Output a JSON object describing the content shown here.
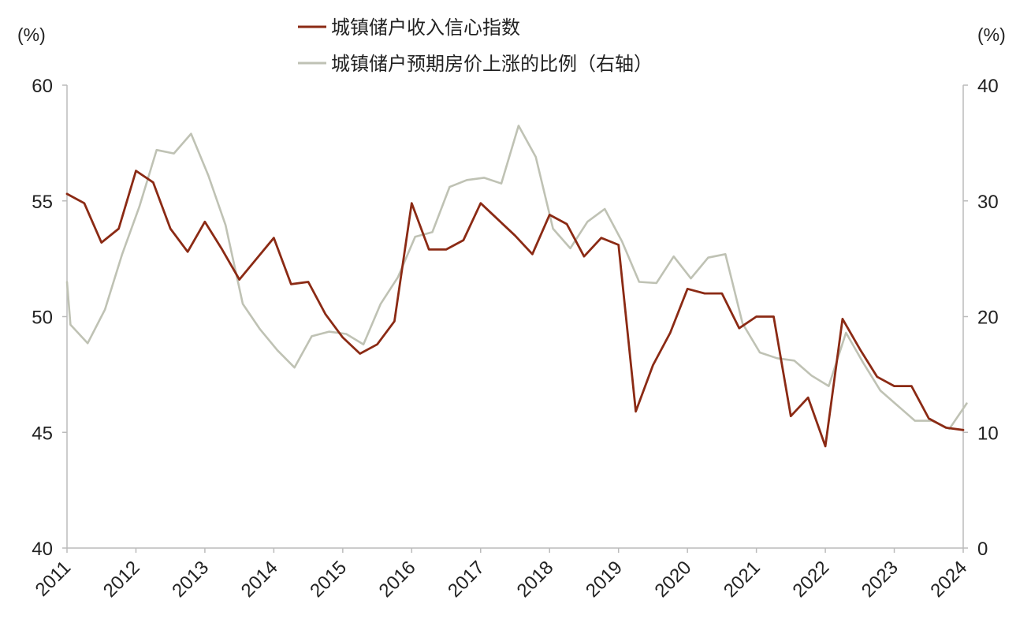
{
  "chart_data": {
    "type": "line",
    "left_unit": "(%)",
    "right_unit": "(%)",
    "x_ticks": [
      "2011",
      "2012",
      "2013",
      "2014",
      "2015",
      "2016",
      "2017",
      "2018",
      "2019",
      "2020",
      "2021",
      "2022",
      "2023",
      "2024"
    ],
    "y_left": {
      "range": [
        40,
        60
      ],
      "ticks": [
        40,
        45,
        50,
        55,
        60
      ]
    },
    "y_right": {
      "range": [
        0,
        40
      ],
      "ticks": [
        0,
        10,
        20,
        30,
        40
      ]
    },
    "grid": false,
    "legend_position": "top-center",
    "series": [
      {
        "name": "城镇储户收入信心指数",
        "axis": "left",
        "color": "#8B2A14",
        "x": [
          2011.0,
          2011.25,
          2011.5,
          2011.75,
          2012.0,
          2012.25,
          2012.5,
          2012.75,
          2013.0,
          2013.25,
          2013.5,
          2013.75,
          2014.0,
          2014.25,
          2014.5,
          2014.75,
          2015.0,
          2015.25,
          2015.5,
          2015.75,
          2016.0,
          2016.25,
          2016.5,
          2016.75,
          2017.0,
          2017.25,
          2017.5,
          2017.75,
          2018.0,
          2018.25,
          2018.5,
          2018.75,
          2019.0,
          2019.25,
          2019.5,
          2019.75,
          2020.0,
          2020.25,
          2020.5,
          2020.75,
          2021.0,
          2021.25,
          2021.5,
          2021.75,
          2022.0,
          2022.25,
          2022.5,
          2022.75,
          2023.0,
          2023.25,
          2023.5,
          2023.75,
          2024.0
        ],
        "values": [
          55.3,
          54.9,
          53.2,
          53.8,
          56.3,
          55.8,
          53.8,
          52.8,
          54.1,
          52.9,
          51.6,
          52.5,
          53.4,
          51.4,
          51.5,
          50.1,
          49.1,
          48.4,
          48.8,
          49.8,
          54.9,
          52.9,
          52.9,
          53.3,
          54.9,
          54.2,
          53.5,
          52.7,
          54.4,
          54.0,
          52.6,
          53.4,
          53.1,
          45.9,
          47.9,
          49.3,
          51.2,
          51.0,
          51.0,
          49.5,
          50.0,
          50.0,
          45.7,
          46.5,
          44.4,
          49.9,
          48.6,
          47.4,
          47.0,
          47.0,
          45.6,
          45.2,
          45.1
        ]
      },
      {
        "name": "城镇储户预期房价上涨的比例（右轴）",
        "axis": "right",
        "color": "#BFC2B4",
        "x": [
          2011.0,
          2011.05,
          2011.3,
          2011.55,
          2011.8,
          2012.05,
          2012.3,
          2012.55,
          2012.8,
          2013.05,
          2013.3,
          2013.55,
          2013.8,
          2014.05,
          2014.3,
          2014.55,
          2014.8,
          2015.05,
          2015.3,
          2015.55,
          2015.8,
          2016.05,
          2016.3,
          2016.55,
          2016.8,
          2017.05,
          2017.3,
          2017.55,
          2017.8,
          2018.05,
          2018.3,
          2018.55,
          2018.8,
          2019.05,
          2019.3,
          2019.55,
          2019.8,
          2020.05,
          2020.3,
          2020.55,
          2020.8,
          2021.05,
          2021.3,
          2021.55,
          2021.8,
          2022.05,
          2022.3,
          2022.55,
          2022.8,
          2023.05,
          2023.3,
          2023.55,
          2023.8,
          2024.05
        ],
        "values": [
          23.0,
          19.3,
          17.7,
          20.6,
          25.4,
          29.5,
          34.4,
          34.1,
          35.8,
          32.2,
          27.9,
          21.1,
          18.9,
          17.1,
          15.6,
          18.3,
          18.7,
          18.5,
          17.6,
          21.1,
          23.4,
          26.9,
          27.3,
          31.2,
          31.8,
          32.0,
          31.5,
          36.5,
          33.8,
          27.6,
          25.9,
          28.2,
          29.3,
          26.5,
          23.0,
          22.9,
          25.2,
          23.3,
          25.1,
          25.4,
          19.4,
          16.9,
          16.4,
          16.2,
          14.9,
          14.0,
          18.6,
          16.0,
          13.6,
          12.3,
          11.0,
          11.0,
          10.3,
          12.5
        ]
      }
    ]
  }
}
